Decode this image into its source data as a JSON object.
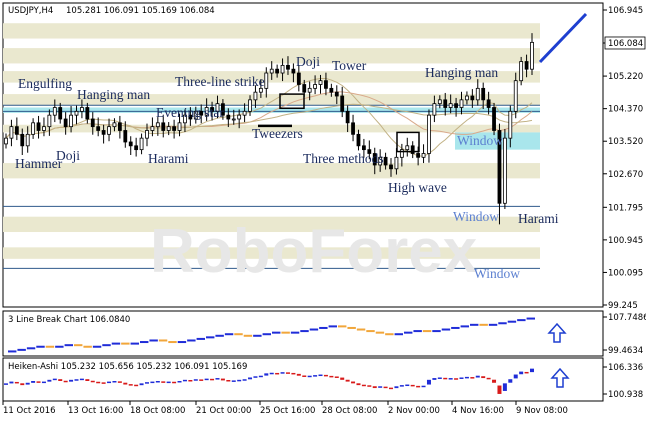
{
  "header": {
    "symbol": "USDJPY,H4",
    "ohlc": "105.281 106.091 105.169 106.084"
  },
  "colors": {
    "band": "#eae8cf",
    "cyan_zone": "#a9e6ec",
    "candle": "#000000",
    "bull_brick": "#1f2cd8",
    "bear_brick": "#f1a63a",
    "ha_bull": "#1f2cd8",
    "ha_bear": "#d81b1b",
    "arrow": "#1e3fd0",
    "channel_line": "#2f5a8c",
    "ma1": "#c2b285",
    "ma2": "#d9a98a"
  },
  "chart_data": [
    {
      "type": "line",
      "title": "USDJPY,H4 candlestick chart",
      "ohlc_last": {
        "open": 105.281,
        "high": 106.091,
        "low": 105.169,
        "close": 106.084
      },
      "y_ticks": [
        "106.945",
        "106.084",
        "105.220",
        "104.370",
        "103.520",
        "102.670",
        "101.795",
        "100.945",
        "100.095",
        "99.245"
      ],
      "ylim": [
        99.245,
        106.945
      ],
      "current_price": "106.084",
      "x_ticks": [
        "11 Oct 2016",
        "13 Oct 16:00",
        "18 Oct 08:00",
        "21 Oct 00:00",
        "25 Oct 16:00",
        "28 Oct 08:00",
        "2 Nov 00:00",
        "4 Nov 16:00",
        "9 Nov 08:00"
      ],
      "close_series": [
        103.6,
        103.9,
        103.7,
        103.4,
        103.7,
        104.0,
        103.8,
        103.9,
        104.2,
        104.4,
        104.1,
        103.9,
        104.2,
        104.3,
        104.4,
        104.1,
        103.9,
        103.8,
        103.7,
        103.9,
        104.0,
        103.8,
        103.5,
        103.4,
        103.3,
        103.6,
        103.8,
        103.9,
        104.0,
        103.8,
        103.9,
        103.8,
        104.0,
        104.2,
        104.1,
        104.3,
        104.2,
        104.4,
        104.3,
        104.5,
        104.2,
        104.1,
        104.1,
        104.2,
        104.3,
        104.6,
        104.8,
        104.9,
        105.3,
        105.4,
        105.3,
        105.5,
        105.4,
        105.3,
        105.0,
        104.8,
        104.9,
        105.0,
        105.1,
        104.9,
        104.8,
        104.7,
        104.3,
        104.0,
        103.7,
        103.4,
        103.3,
        103.2,
        102.9,
        103.1,
        102.9,
        102.8,
        103.1,
        103.3,
        103.4,
        103.2,
        103.1,
        103.2,
        104.2,
        104.5,
        104.6,
        104.4,
        104.5,
        104.4,
        104.6,
        104.7,
        104.6,
        104.9,
        104.6,
        104.4,
        103.8,
        101.9,
        103.6,
        104.3,
        105.1,
        105.6,
        105.4,
        106.1
      ],
      "annotations": [
        {
          "text": "Engulfing",
          "style": "dark"
        },
        {
          "text": "Hanging man",
          "style": "dark"
        },
        {
          "text": "Three-line strike",
          "style": "dark"
        },
        {
          "text": "Doji",
          "style": "dark"
        },
        {
          "text": "Tower",
          "style": "dark"
        },
        {
          "text": "Hanging man",
          "style": "dark"
        },
        {
          "text": "Evening star",
          "style": "dark"
        },
        {
          "text": "Tweezers",
          "style": "dark"
        },
        {
          "text": "Window",
          "style": "blue"
        },
        {
          "text": "Hammer",
          "style": "dark"
        },
        {
          "text": "Doji",
          "style": "dark"
        },
        {
          "text": "Harami",
          "style": "dark"
        },
        {
          "text": "Three methods",
          "style": "dark"
        },
        {
          "text": "High wave",
          "style": "dark"
        },
        {
          "text": "Window",
          "style": "blue"
        },
        {
          "text": "Harami",
          "style": "dark"
        },
        {
          "text": "Window",
          "style": "blue"
        }
      ],
      "watermark": "RoboForex"
    },
    {
      "type": "bar",
      "title": "3 Line Break Chart 106.0840",
      "y_ticks": [
        "107.7486",
        "99.4634"
      ],
      "ylim": [
        99.4634,
        107.7486
      ],
      "bricks": [
        1,
        1,
        1,
        1,
        -1,
        1,
        1,
        -1,
        -1,
        1,
        1,
        1,
        -1,
        1,
        1,
        1,
        -1,
        -1,
        1,
        1,
        1,
        1,
        1,
        1,
        -1,
        -1,
        1,
        1,
        1,
        -1,
        1,
        1,
        1,
        1,
        1,
        -1,
        -1,
        -1,
        -1,
        -1,
        -1,
        1,
        1,
        1,
        -1,
        1,
        1,
        1,
        1,
        1,
        -1,
        1,
        1,
        1,
        1,
        1
      ]
    },
    {
      "type": "bar",
      "title": "Heiken-Ashi 105.232 105.656 105.232 106.091 105.169",
      "y_ticks": [
        "106.336",
        "100.938"
      ],
      "ylim": [
        100.938,
        106.336
      ]
    }
  ]
}
